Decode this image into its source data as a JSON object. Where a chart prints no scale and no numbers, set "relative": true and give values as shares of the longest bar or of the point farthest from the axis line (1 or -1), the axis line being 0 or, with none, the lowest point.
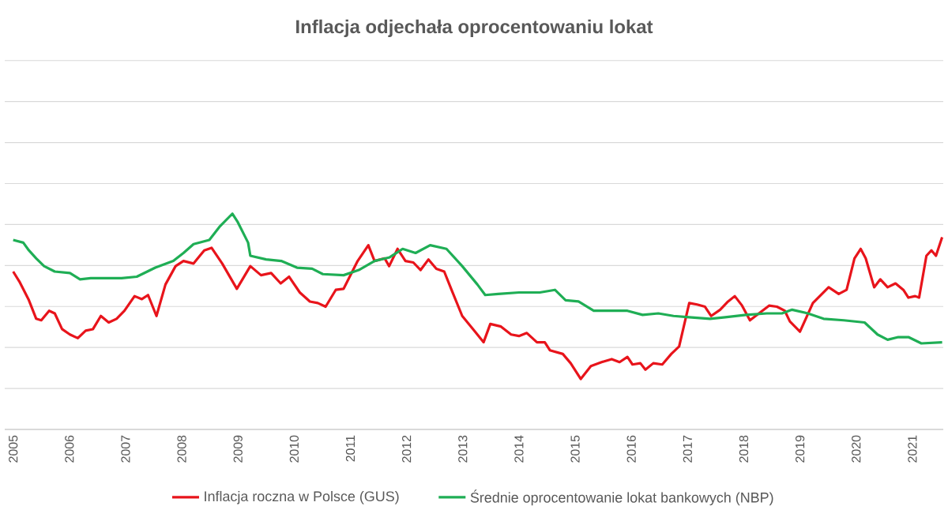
{
  "chart_data": {
    "type": "line",
    "title": "Inflacja odjechała oprocentowaniu lokat",
    "relative": true,
    "grid": "y",
    "legend": "bottom",
    "xlim": [
      2004.85,
      2021.55
    ],
    "xticks": [
      2005,
      2006,
      2007,
      2008,
      2009,
      2010,
      2011,
      2012,
      2013,
      2014,
      2015,
      2016,
      2017,
      2018,
      2019,
      2020,
      2021
    ],
    "series": [
      {
        "name": "Inflacja roczna w Polsce (GUS)",
        "color": "#e8141b",
        "x": [
          2005.0,
          2005.11,
          2005.28,
          2005.41,
          2005.5,
          2005.64,
          2005.74,
          2005.87,
          2006.01,
          2006.15,
          2006.29,
          2006.42,
          2006.56,
          2006.7,
          2006.84,
          2006.98,
          2007.16,
          2007.29,
          2007.4,
          2007.55,
          2007.71,
          2007.89,
          2008.03,
          2008.21,
          2008.4,
          2008.53,
          2008.72,
          2008.98,
          2009.22,
          2009.41,
          2009.59,
          2009.76,
          2009.91,
          2010.1,
          2010.28,
          2010.42,
          2010.56,
          2010.74,
          2010.88,
          2011.13,
          2011.32,
          2011.43,
          2011.61,
          2011.69,
          2011.84,
          2011.98,
          2012.12,
          2012.25,
          2012.39,
          2012.53,
          2012.67,
          2012.8,
          2012.99,
          2013.22,
          2013.37,
          2013.49,
          2013.68,
          2013.86,
          2014.0,
          2014.14,
          2014.32,
          2014.46,
          2014.55,
          2014.78,
          2014.92,
          2015.1,
          2015.28,
          2015.47,
          2015.65,
          2015.79,
          2015.93,
          2016.02,
          2016.16,
          2016.25,
          2016.39,
          2016.55,
          2016.71,
          2016.85,
          2017.03,
          2017.17,
          2017.31,
          2017.42,
          2017.58,
          2017.72,
          2017.84,
          2017.97,
          2018.11,
          2018.27,
          2018.45,
          2018.59,
          2018.73,
          2018.82,
          2019.0,
          2019.23,
          2019.37,
          2019.51,
          2019.69,
          2019.83,
          2019.97,
          2020.08,
          2020.17,
          2020.32,
          2020.43,
          2020.56,
          2020.7,
          2020.84,
          2020.93,
          2021.05,
          2021.12,
          2021.25,
          2021.34,
          2021.42,
          2021.53
        ],
        "values": [
          0.732,
          0.686,
          0.599,
          0.513,
          0.506,
          0.55,
          0.538,
          0.465,
          0.44,
          0.423,
          0.458,
          0.465,
          0.526,
          0.496,
          0.513,
          0.55,
          0.618,
          0.604,
          0.623,
          0.526,
          0.672,
          0.757,
          0.781,
          0.769,
          0.83,
          0.842,
          0.769,
          0.652,
          0.757,
          0.715,
          0.725,
          0.677,
          0.708,
          0.635,
          0.593,
          0.586,
          0.569,
          0.647,
          0.652,
          0.781,
          0.854,
          0.781,
          0.793,
          0.757,
          0.837,
          0.781,
          0.774,
          0.739,
          0.788,
          0.745,
          0.732,
          0.647,
          0.526,
          0.453,
          0.404,
          0.489,
          0.477,
          0.44,
          0.433,
          0.447,
          0.404,
          0.404,
          0.367,
          0.35,
          0.307,
          0.234,
          0.294,
          0.312,
          0.326,
          0.312,
          0.336,
          0.301,
          0.307,
          0.277,
          0.307,
          0.301,
          0.35,
          0.385,
          0.586,
          0.579,
          0.569,
          0.526,
          0.555,
          0.593,
          0.618,
          0.574,
          0.506,
          0.538,
          0.574,
          0.569,
          0.55,
          0.501,
          0.453,
          0.586,
          0.623,
          0.659,
          0.628,
          0.647,
          0.793,
          0.837,
          0.793,
          0.659,
          0.696,
          0.659,
          0.677,
          0.647,
          0.611,
          0.618,
          0.611,
          0.805,
          0.83,
          0.805,
          0.891
        ]
      },
      {
        "name": "Średnie oprocentowanie lokat bankowych (NBP)",
        "color": "#1fae55",
        "x": [
          2005.0,
          2005.18,
          2005.28,
          2005.41,
          2005.55,
          2005.74,
          2006.01,
          2006.19,
          2006.38,
          2006.65,
          2006.93,
          2007.2,
          2007.53,
          2007.85,
          2008.03,
          2008.21,
          2008.49,
          2008.67,
          2008.9,
          2008.99,
          2009.18,
          2009.22,
          2009.5,
          2009.77,
          2010.05,
          2010.32,
          2010.51,
          2010.88,
          2011.15,
          2011.43,
          2011.7,
          2011.93,
          2012.16,
          2012.42,
          2012.71,
          2012.99,
          2013.26,
          2013.4,
          2013.63,
          2014.0,
          2014.37,
          2014.64,
          2014.83,
          2015.06,
          2015.33,
          2015.65,
          2015.93,
          2016.2,
          2016.48,
          2016.75,
          2017.03,
          2017.4,
          2017.67,
          2018.04,
          2018.41,
          2018.68,
          2018.86,
          2019.14,
          2019.42,
          2019.78,
          2020.15,
          2020.38,
          2020.56,
          2020.75,
          2020.93,
          2021.16,
          2021.53
        ],
        "values": [
          0.878,
          0.866,
          0.83,
          0.793,
          0.757,
          0.732,
          0.725,
          0.696,
          0.701,
          0.701,
          0.701,
          0.708,
          0.75,
          0.781,
          0.818,
          0.859,
          0.878,
          0.939,
          1,
          0.964,
          0.866,
          0.805,
          0.788,
          0.781,
          0.75,
          0.745,
          0.72,
          0.715,
          0.739,
          0.781,
          0.798,
          0.837,
          0.818,
          0.854,
          0.837,
          0.757,
          0.672,
          0.623,
          0.628,
          0.635,
          0.635,
          0.647,
          0.599,
          0.593,
          0.55,
          0.55,
          0.55,
          0.531,
          0.538,
          0.526,
          0.52,
          0.513,
          0.52,
          0.531,
          0.538,
          0.538,
          0.555,
          0.538,
          0.513,
          0.506,
          0.496,
          0.44,
          0.416,
          0.428,
          0.428,
          0.399,
          0.404
        ]
      }
    ]
  }
}
